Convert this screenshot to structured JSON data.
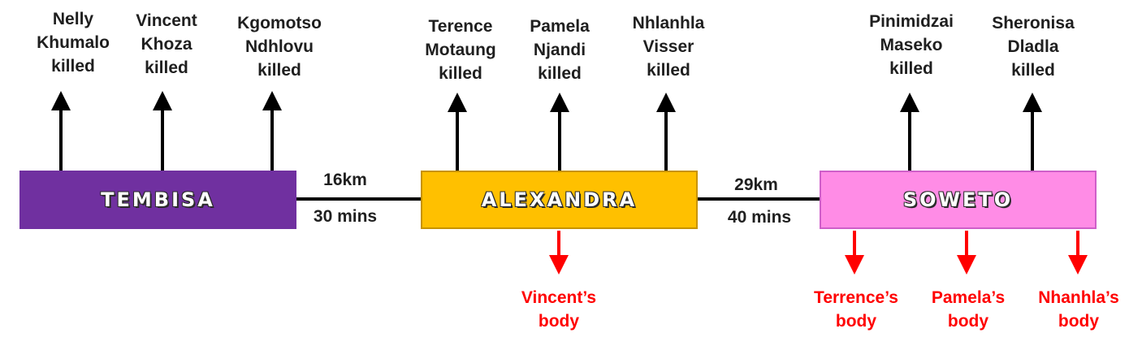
{
  "colors": {
    "tembisa": "#7030a0",
    "alexandra": "#ffc000",
    "soweto": "#ff8ce6",
    "victim_arrow": "#000000",
    "body_arrow": "#ff0000",
    "connector": "#000000"
  },
  "locations": {
    "tembisa": "TEMBISA",
    "alexandra": "ALEXANDRA",
    "soweto": "SOWETO"
  },
  "legs": {
    "first": {
      "distance": "16km",
      "time": "30 mins"
    },
    "second": {
      "distance": "29km",
      "time": "40 mins"
    }
  },
  "victims": {
    "tembisa": [
      {
        "first": "Nelly",
        "last": "Khumalo",
        "status": "killed"
      },
      {
        "first": "Vincent",
        "last": "Khoza",
        "status": "killed"
      },
      {
        "first": "Kgomotso",
        "last": "Ndhlovu",
        "status": "killed"
      }
    ],
    "alexandra": [
      {
        "first": "Terence",
        "last": "Motaung",
        "status": "killed"
      },
      {
        "first": "Pamela",
        "last": "Njandi",
        "status": "killed"
      },
      {
        "first": "Nhlanhla",
        "last": "Visser",
        "status": "killed"
      }
    ],
    "soweto": [
      {
        "first": "Pinimidzai",
        "last": "Maseko",
        "status": "killed"
      },
      {
        "first": "Sheronisa",
        "last": "Dladla",
        "status": "killed"
      }
    ]
  },
  "bodies": {
    "alexandra": [
      {
        "name": "Vincent’s",
        "word": "body"
      }
    ],
    "soweto": [
      {
        "name": "Terrence’s",
        "word": "body"
      },
      {
        "name": "Pamela’s",
        "word": "body"
      },
      {
        "name": "Nhanhla’s",
        "word": "body"
      }
    ]
  }
}
